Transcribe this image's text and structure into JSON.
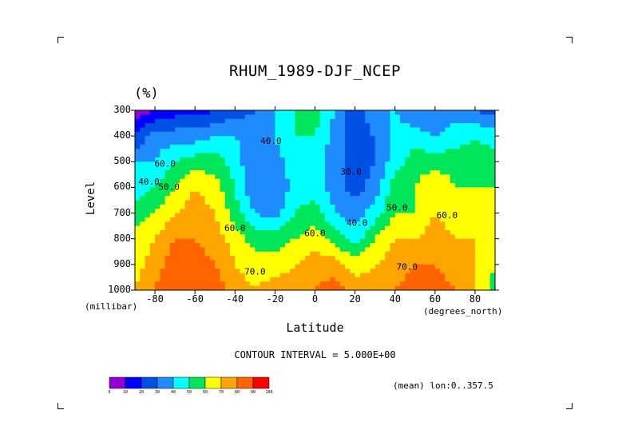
{
  "chart_data": {
    "type": "heatmap",
    "title": "RHUM_1989-DJF_NCEP",
    "units": "(%)",
    "xlabel": "Latitude",
    "ylabel": "Level",
    "x_units": "(degrees_north)",
    "y_units": "(millibar)",
    "xlim": [
      -90,
      90
    ],
    "ylim": [
      1000,
      300
    ],
    "x_ticks": [
      -80,
      -60,
      -40,
      -20,
      0,
      20,
      40,
      60,
      80
    ],
    "x_tick_labels": [
      "-80",
      "-60",
      "-40",
      "-20",
      "0",
      "20",
      "40",
      "60",
      "80"
    ],
    "y_ticks": [
      300,
      400,
      500,
      600,
      700,
      800,
      900,
      1000
    ],
    "y_tick_labels": [
      "300",
      "400",
      "500",
      "600",
      "700",
      "800",
      "900",
      "1000"
    ],
    "contour_interval_text": "CONTOUR INTERVAL = 5.000E+00",
    "contour_labels": [
      "40.0",
      "40.0",
      "30.0",
      "40.0",
      "50.0",
      "50.0",
      "60.0",
      "60.0",
      "60.0",
      "60.0",
      "70.0",
      "70.0"
    ],
    "annotation": "(mean) lon:0..357.5",
    "latitudes": [
      -90,
      -80,
      -70,
      -60,
      -50,
      -40,
      -30,
      -20,
      -10,
      0,
      10,
      20,
      30,
      40,
      50,
      60,
      70,
      80,
      90
    ],
    "levels": [
      300,
      400,
      500,
      600,
      700,
      800,
      900,
      1000
    ],
    "values": [
      [
        5,
        10,
        15,
        15,
        20,
        25,
        30,
        40,
        50,
        55,
        40,
        20,
        40,
        40,
        30,
        30,
        35,
        30,
        25
      ],
      [
        20,
        35,
        35,
        35,
        40,
        40,
        35,
        40,
        50,
        50,
        35,
        25,
        30,
        45,
        45,
        40,
        45,
        50,
        45
      ],
      [
        40,
        40,
        50,
        55,
        55,
        45,
        30,
        35,
        45,
        45,
        35,
        25,
        30,
        45,
        55,
        55,
        55,
        55,
        55
      ],
      [
        45,
        50,
        60,
        70,
        65,
        50,
        30,
        30,
        45,
        45,
        35,
        25,
        35,
        55,
        60,
        70,
        60,
        60,
        60
      ],
      [
        55,
        60,
        70,
        75,
        70,
        55,
        40,
        35,
        50,
        55,
        40,
        35,
        45,
        60,
        60,
        70,
        65,
        65,
        60
      ],
      [
        65,
        70,
        80,
        80,
        75,
        65,
        55,
        55,
        60,
        65,
        55,
        45,
        60,
        70,
        70,
        75,
        70,
        70,
        65
      ],
      [
        65,
        75,
        85,
        85,
        80,
        70,
        65,
        65,
        70,
        75,
        75,
        65,
        70,
        75,
        80,
        80,
        75,
        70,
        60
      ],
      [
        70,
        80,
        90,
        90,
        85,
        75,
        70,
        75,
        75,
        80,
        85,
        75,
        75,
        80,
        85,
        85,
        80,
        70,
        55
      ]
    ],
    "colorbar": {
      "bounds": [
        "0",
        "10",
        "20",
        "30",
        "40",
        "50",
        "60",
        "70",
        "80",
        "90",
        "100"
      ],
      "colors": [
        "#9400d3",
        "#0000ff",
        "#0050e6",
        "#1e8cff",
        "#00ffff",
        "#00e65a",
        "#ffff00",
        "#ffa500",
        "#ff6400",
        "#ff0000"
      ]
    },
    "grid": false
  }
}
